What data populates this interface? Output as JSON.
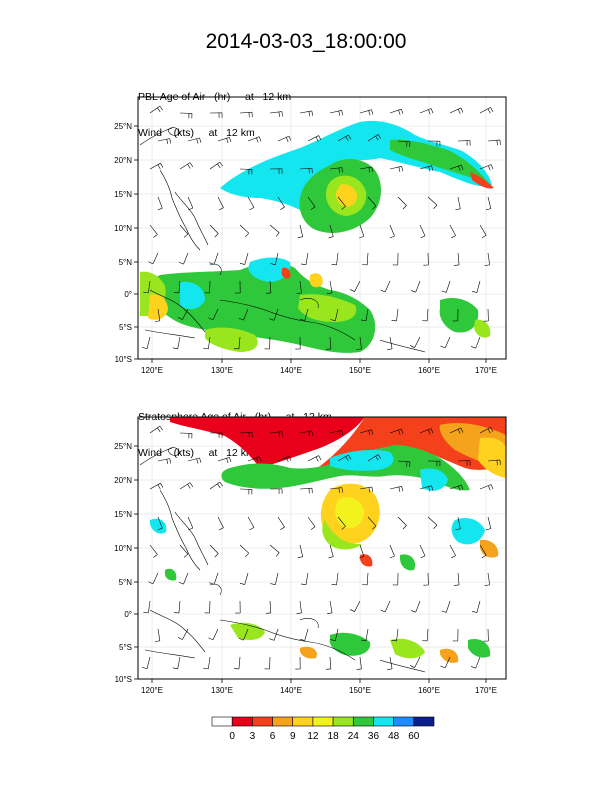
{
  "title": "2014-03-03_18:00:00",
  "panels": [
    {
      "label_line1": "PBL Age of Air   (hr)     at   12 km",
      "label_line2": "Wind    (kts)     at   12 km"
    },
    {
      "label_line1": "Stratosphere Age of Air   (hr)     at   12 km",
      "label_line2": "Wind    (kts)     at   12 km"
    }
  ],
  "map": {
    "lon_ticks": [
      "120°E",
      "130°E",
      "140°E",
      "150°E",
      "160°E",
      "170°E"
    ],
    "lat_ticks": [
      "25°N",
      "20°N",
      "15°N",
      "10°N",
      "5°N",
      "0°",
      "5°S",
      "10°S"
    ]
  },
  "colorbar": {
    "labels": [
      "0",
      "3",
      "6",
      "9",
      "12",
      "18",
      "24",
      "36",
      "48",
      "60"
    ],
    "colors": [
      "#ffffff",
      "#e8001b",
      "#f5401c",
      "#f5a21c",
      "#ffd21e",
      "#f2f21e",
      "#9ae61e",
      "#2ec83a",
      "#14e6f0",
      "#1e8cff",
      "#0c1e8c"
    ]
  }
}
